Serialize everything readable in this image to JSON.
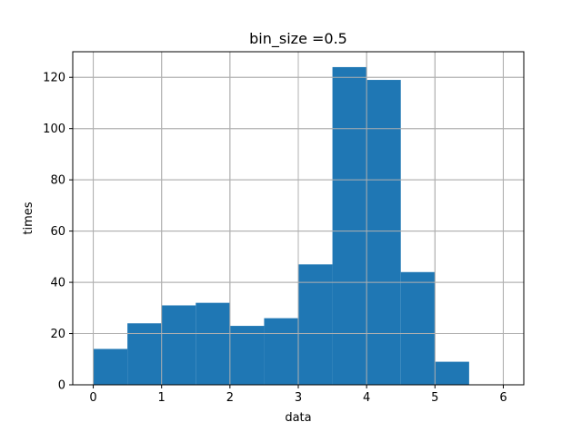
{
  "chart_data": {
    "type": "bar",
    "title": "bin_size =0.5",
    "xlabel": "data",
    "ylabel": "times",
    "bin_size": 0.5,
    "bins": [
      {
        "start": 0.0,
        "end": 0.5,
        "count": 14
      },
      {
        "start": 0.5,
        "end": 1.0,
        "count": 24
      },
      {
        "start": 1.0,
        "end": 1.5,
        "count": 31
      },
      {
        "start": 1.5,
        "end": 2.0,
        "count": 32
      },
      {
        "start": 2.0,
        "end": 2.5,
        "count": 23
      },
      {
        "start": 2.5,
        "end": 3.0,
        "count": 26
      },
      {
        "start": 3.0,
        "end": 3.5,
        "count": 47
      },
      {
        "start": 3.5,
        "end": 4.0,
        "count": 124
      },
      {
        "start": 4.0,
        "end": 4.5,
        "count": 119
      },
      {
        "start": 4.5,
        "end": 5.0,
        "count": 44
      },
      {
        "start": 5.0,
        "end": 5.5,
        "count": 9
      },
      {
        "start": 5.5,
        "end": 6.0,
        "count": 0
      }
    ],
    "xlim": [
      -0.3,
      6.3
    ],
    "ylim": [
      0,
      130
    ],
    "xticks": [
      0,
      1,
      2,
      3,
      4,
      5,
      6
    ],
    "yticks": [
      0,
      20,
      40,
      60,
      80,
      100,
      120
    ],
    "grid": true,
    "bar_color": "#1f77b4",
    "grid_color": "#b0b0b0"
  }
}
